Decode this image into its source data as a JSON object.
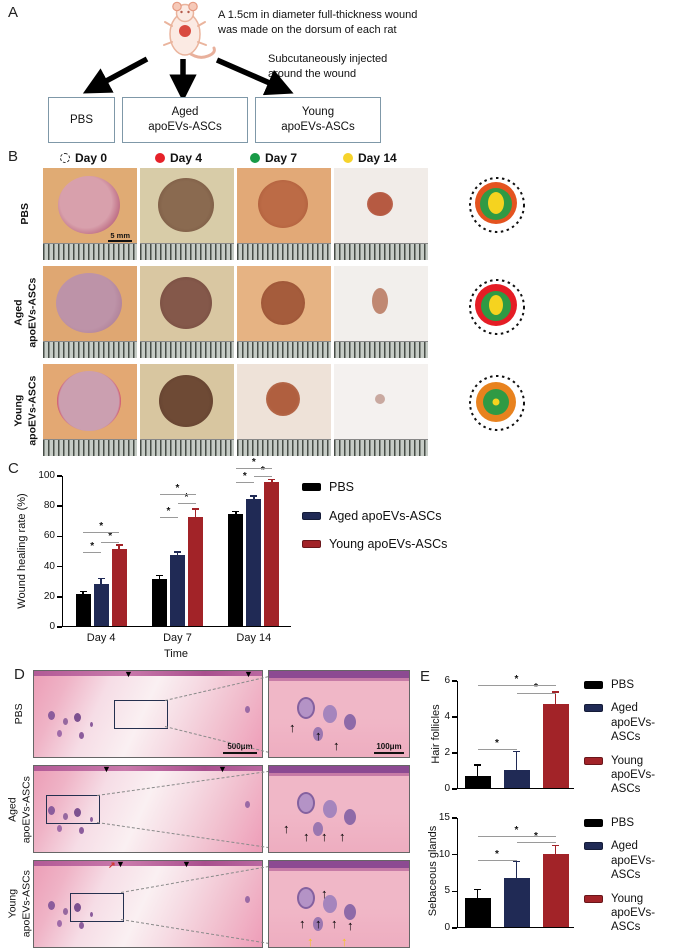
{
  "panelA": {
    "label": "A",
    "caption_wound": "A 1.5cm in diameter full-thickness wound\nwas made on the dorsum of each rat",
    "caption_injection": "Subcutaneously injected\naround the wound",
    "groups": [
      "PBS",
      "Aged\napoEVs-ASCs",
      "Young\napoEVs-ASCs"
    ]
  },
  "panelB": {
    "label": "B",
    "timepoints": [
      {
        "label": "Day 0",
        "marker": "dashed-circle",
        "color": "#222222"
      },
      {
        "label": "Day 4",
        "marker": "dot",
        "color": "#e62129"
      },
      {
        "label": "Day 7",
        "marker": "dot",
        "color": "#189a46"
      },
      {
        "label": "Day 14",
        "marker": "dot",
        "color": "#f6d32b"
      }
    ],
    "scale_bar": "5 mm",
    "rows": [
      {
        "group": "PBS",
        "schematic": {
          "day4_ring": "#e4531f",
          "day7_area": "#2f9a44",
          "day14_area": "#f5d31f",
          "day14_size": "large"
        }
      },
      {
        "group": "Aged\napoEVs-ASCs",
        "schematic": {
          "day4_ring": "#e51d25",
          "day7_area": "#2f9a44",
          "day14_area": "#f5d31f",
          "day14_size": "medium"
        }
      },
      {
        "group": "Young\napoEVs-ASCs",
        "schematic": {
          "day4_ring": "#e8821e",
          "day7_area": "#2f9a44",
          "day14_area": "#f5d31f",
          "day14_size": "small"
        }
      }
    ]
  },
  "panelC": {
    "label": "C"
  },
  "panelD": {
    "label": "D",
    "scale_left": "500μm",
    "scale_right": "100μm",
    "rows": [
      {
        "group": "PBS",
        "zoom_arrows": {
          "black": 3,
          "yellow": 0
        },
        "extra_marker": ""
      },
      {
        "group": "Aged\napoEVs-ASCs",
        "zoom_arrows": {
          "black": 4,
          "yellow": 0
        },
        "extra_marker": ""
      },
      {
        "group": "Young\napoEVs-ASCs",
        "zoom_arrows": {
          "black": 5,
          "yellow": 2
        },
        "extra_marker": "red-arrow"
      }
    ]
  },
  "panelE": {
    "label": "E"
  },
  "icons": {
    "wound_edge_marker": "▼",
    "follicle_arrow": "↑",
    "red_arrow": "↗"
  },
  "colors": {
    "pbs": "#000000",
    "aged": "#202a55",
    "young": "#a22328",
    "sig_line": "#9a9a9a"
  },
  "chart_data": [
    {
      "id": "wound_healing_rate",
      "type": "bar",
      "title": "",
      "xlabel": "Time",
      "ylabel": "Wound healing rate (%)",
      "ylim": [
        0,
        100
      ],
      "yticks": [
        0,
        20,
        40,
        60,
        80,
        100
      ],
      "categories": [
        "Day 4",
        "Day 7",
        "Day 14"
      ],
      "series": [
        {
          "name": "PBS",
          "color": "#000000",
          "values": [
            21,
            31,
            74.5
          ],
          "errors": [
            1.5,
            2,
            1
          ]
        },
        {
          "name": "Aged apoEVs-ASCs",
          "color": "#202a55",
          "values": [
            28,
            47,
            84
          ],
          "errors": [
            3,
            1.5,
            1.5
          ]
        },
        {
          "name": "Young apoEVs-ASCs",
          "color": "#a22328",
          "values": [
            51,
            72,
            95.5
          ],
          "errors": [
            2,
            5,
            1
          ]
        }
      ],
      "significance": [
        {
          "category": 0,
          "pair": [
            0,
            1
          ],
          "y": 50,
          "label": "*"
        },
        {
          "category": 0,
          "pair": [
            1,
            2
          ],
          "y": 56,
          "label": "*"
        },
        {
          "category": 0,
          "pair": [
            0,
            2
          ],
          "y": 63,
          "label": "*"
        },
        {
          "category": 1,
          "pair": [
            0,
            1
          ],
          "y": 73,
          "label": "*"
        },
        {
          "category": 1,
          "pair": [
            1,
            2
          ],
          "y": 82,
          "label": "*"
        },
        {
          "category": 1,
          "pair": [
            0,
            2
          ],
          "y": 88,
          "label": "*"
        },
        {
          "category": 2,
          "pair": [
            0,
            1
          ],
          "y": 96,
          "label": "*"
        },
        {
          "category": 2,
          "pair": [
            1,
            2
          ],
          "y": 100,
          "label": "*"
        },
        {
          "category": 2,
          "pair": [
            0,
            2
          ],
          "y": 105,
          "label": "*"
        }
      ],
      "legend": [
        "PBS",
        "Aged apoEVs-ASCs",
        "Young apoEVs-ASCs"
      ],
      "legend_position": "right"
    },
    {
      "id": "hair_follicles",
      "type": "bar",
      "ylabel": "Hair follicles",
      "ylim": [
        0,
        6
      ],
      "yticks": [
        0,
        2,
        4,
        6
      ],
      "categories": [
        "PBS",
        "Aged apoEVs-ASCs",
        "Young apoEVs-ASCs"
      ],
      "values": [
        0.65,
        1.0,
        4.65
      ],
      "errors": [
        0.6,
        1.0,
        0.65
      ],
      "colors": [
        "#000000",
        "#202a55",
        "#a22328"
      ],
      "significance": [
        {
          "pair": [
            0,
            1
          ],
          "y": 2.2,
          "label": "*"
        },
        {
          "pair": [
            1,
            2
          ],
          "y": 5.35,
          "label": "*"
        },
        {
          "pair": [
            0,
            2
          ],
          "y": 5.8,
          "label": "*"
        }
      ],
      "legend": [
        "PBS",
        "Aged\napoEVs-ASCs",
        "Young\napoEVs-ASCs"
      ],
      "legend_position": "right"
    },
    {
      "id": "sebaceous_glands",
      "type": "bar",
      "ylabel": "Sebaceous glands",
      "ylim": [
        0,
        15
      ],
      "yticks": [
        0,
        5,
        10,
        15
      ],
      "categories": [
        "PBS",
        "Aged apoEVs-ASCs",
        "Young apoEVs-ASCs"
      ],
      "values": [
        4,
        6.7,
        10
      ],
      "errors": [
        1,
        2.1,
        1
      ],
      "colors": [
        "#000000",
        "#202a55",
        "#a22328"
      ],
      "significance": [
        {
          "pair": [
            0,
            1
          ],
          "y": 9.3,
          "label": "*"
        },
        {
          "pair": [
            1,
            2
          ],
          "y": 11.7,
          "label": "*"
        },
        {
          "pair": [
            0,
            2
          ],
          "y": 12.5,
          "label": "*"
        }
      ],
      "legend": [
        "PBS",
        "Aged\napoEVs-ASCs",
        "Young\napoEVs-ASCs"
      ],
      "legend_position": "right"
    }
  ]
}
